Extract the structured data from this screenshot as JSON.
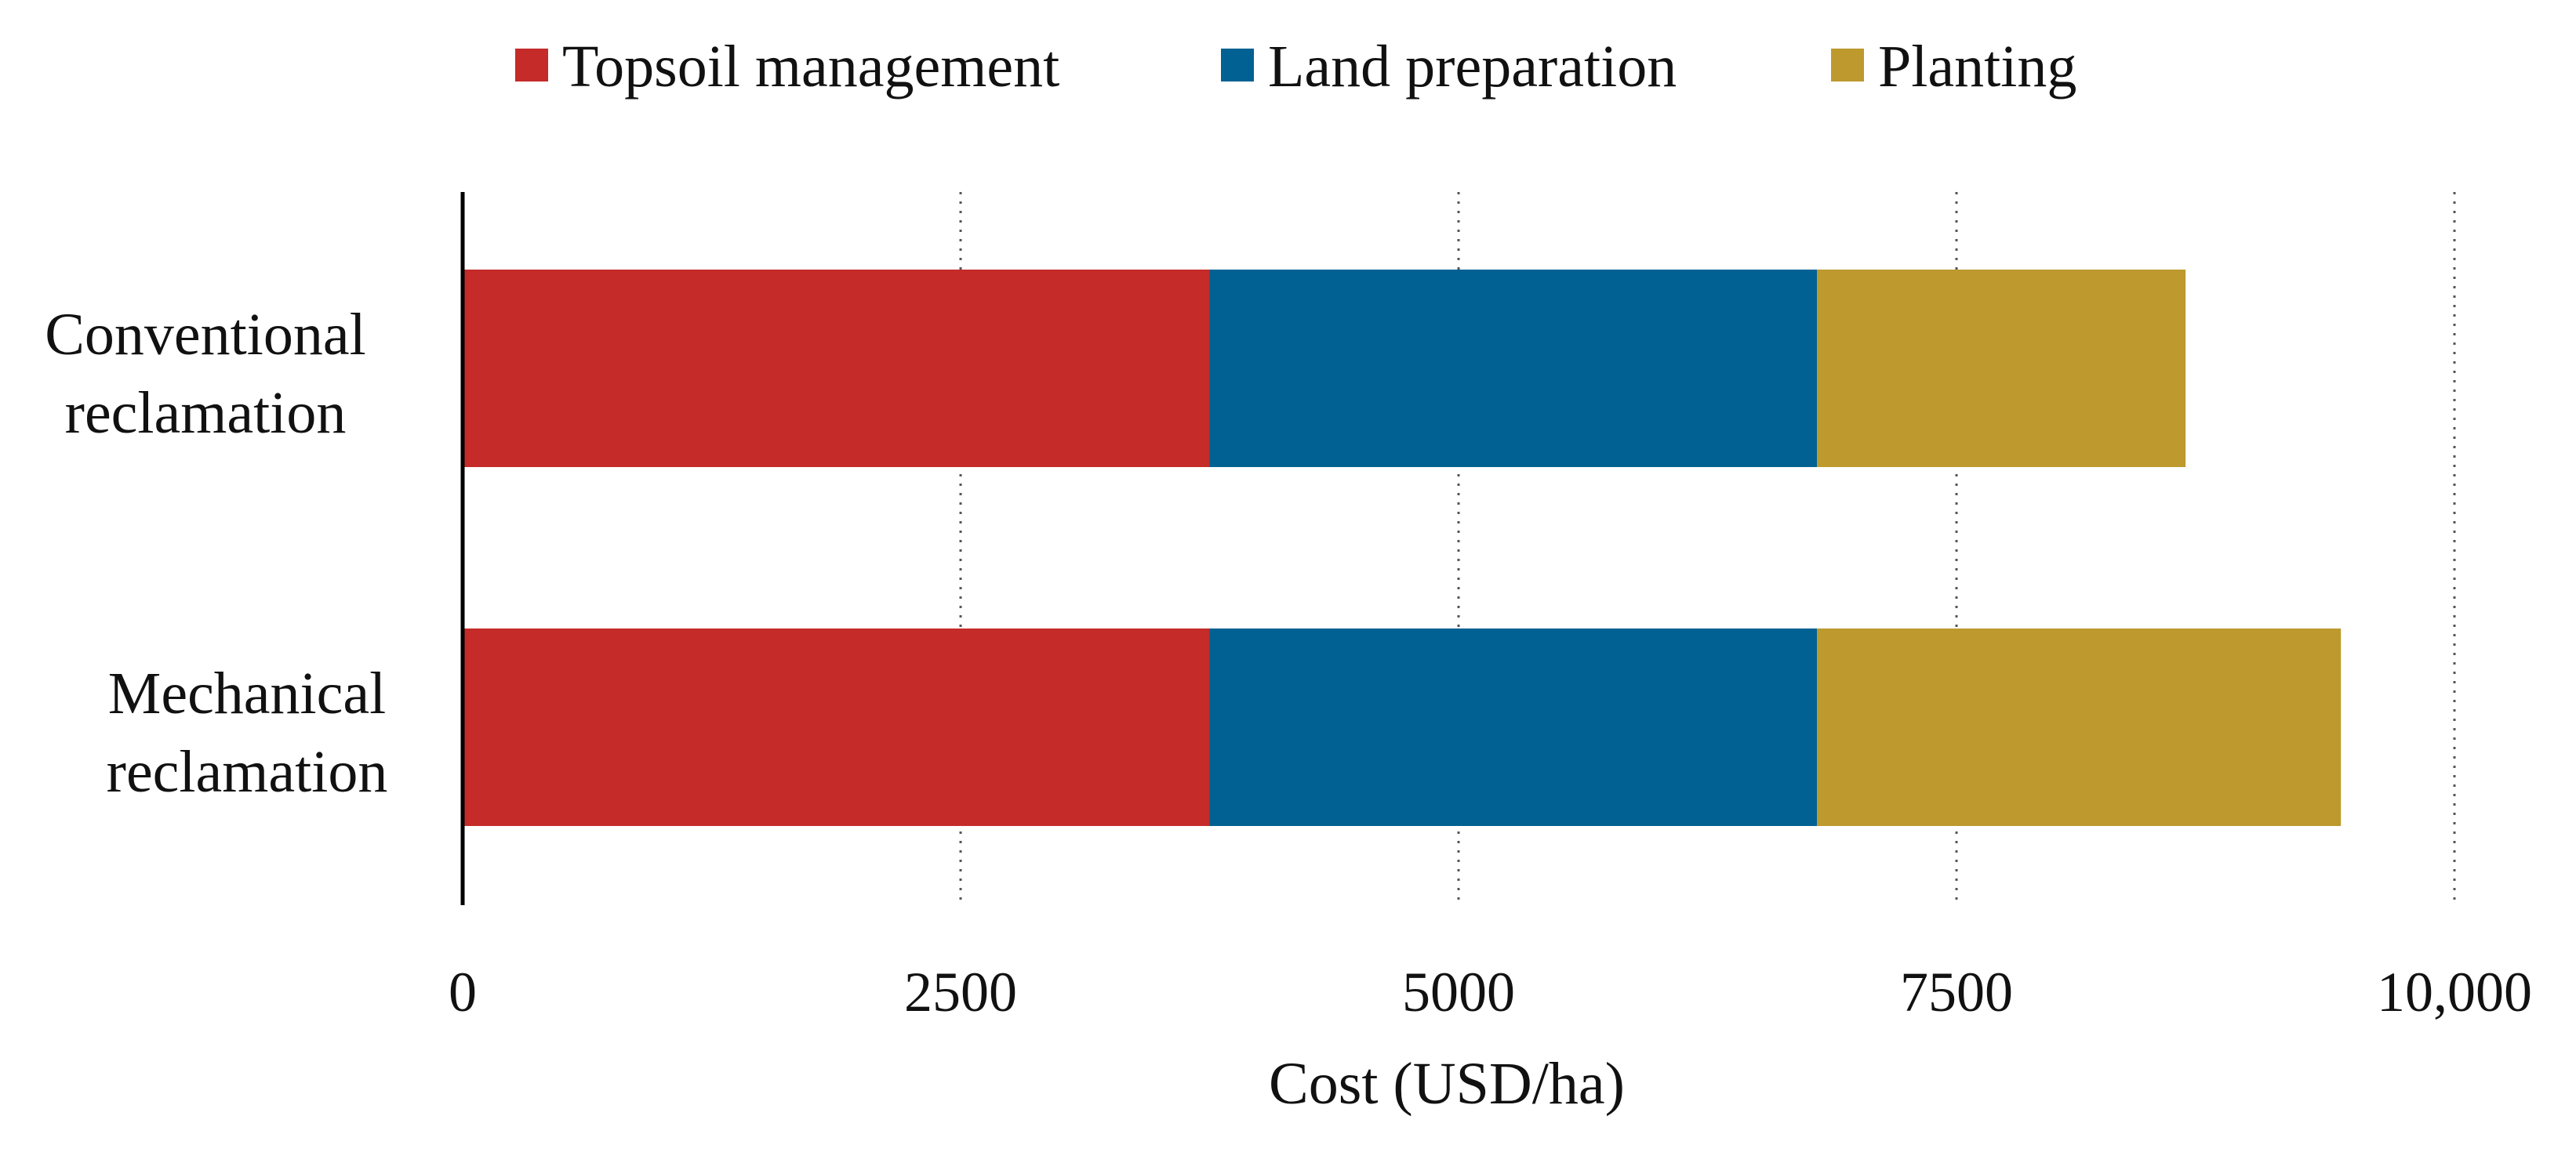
{
  "chart_data": {
    "type": "bar",
    "orientation": "horizontal",
    "stacked": true,
    "title": "",
    "xlabel": "Cost (USD/ha)",
    "ylabel": "",
    "xlim": [
      0,
      10000
    ],
    "ticks": [
      {
        "value": 0,
        "label": "0"
      },
      {
        "value": 2500,
        "label": "2500"
      },
      {
        "value": 5000,
        "label": "5000"
      },
      {
        "value": 7500,
        "label": "7500"
      },
      {
        "value": 10000,
        "label": "10,000"
      }
    ],
    "grid": "vertical dotted",
    "legend_position": "top",
    "categories": [
      {
        "lines": [
          "Conventional",
          "reclamation"
        ]
      },
      {
        "lines": [
          "Mechanical",
          "reclamation"
        ]
      }
    ],
    "series": [
      {
        "name": "Topsoil management",
        "color": "#c42b29",
        "values": [
          3750,
          3750
        ]
      },
      {
        "name": "Land preparation",
        "color": "#006192",
        "values": [
          3050,
          3050
        ]
      },
      {
        "name": "Planting",
        "color": "#bd992e",
        "values": [
          1850,
          2630
        ]
      }
    ]
  }
}
